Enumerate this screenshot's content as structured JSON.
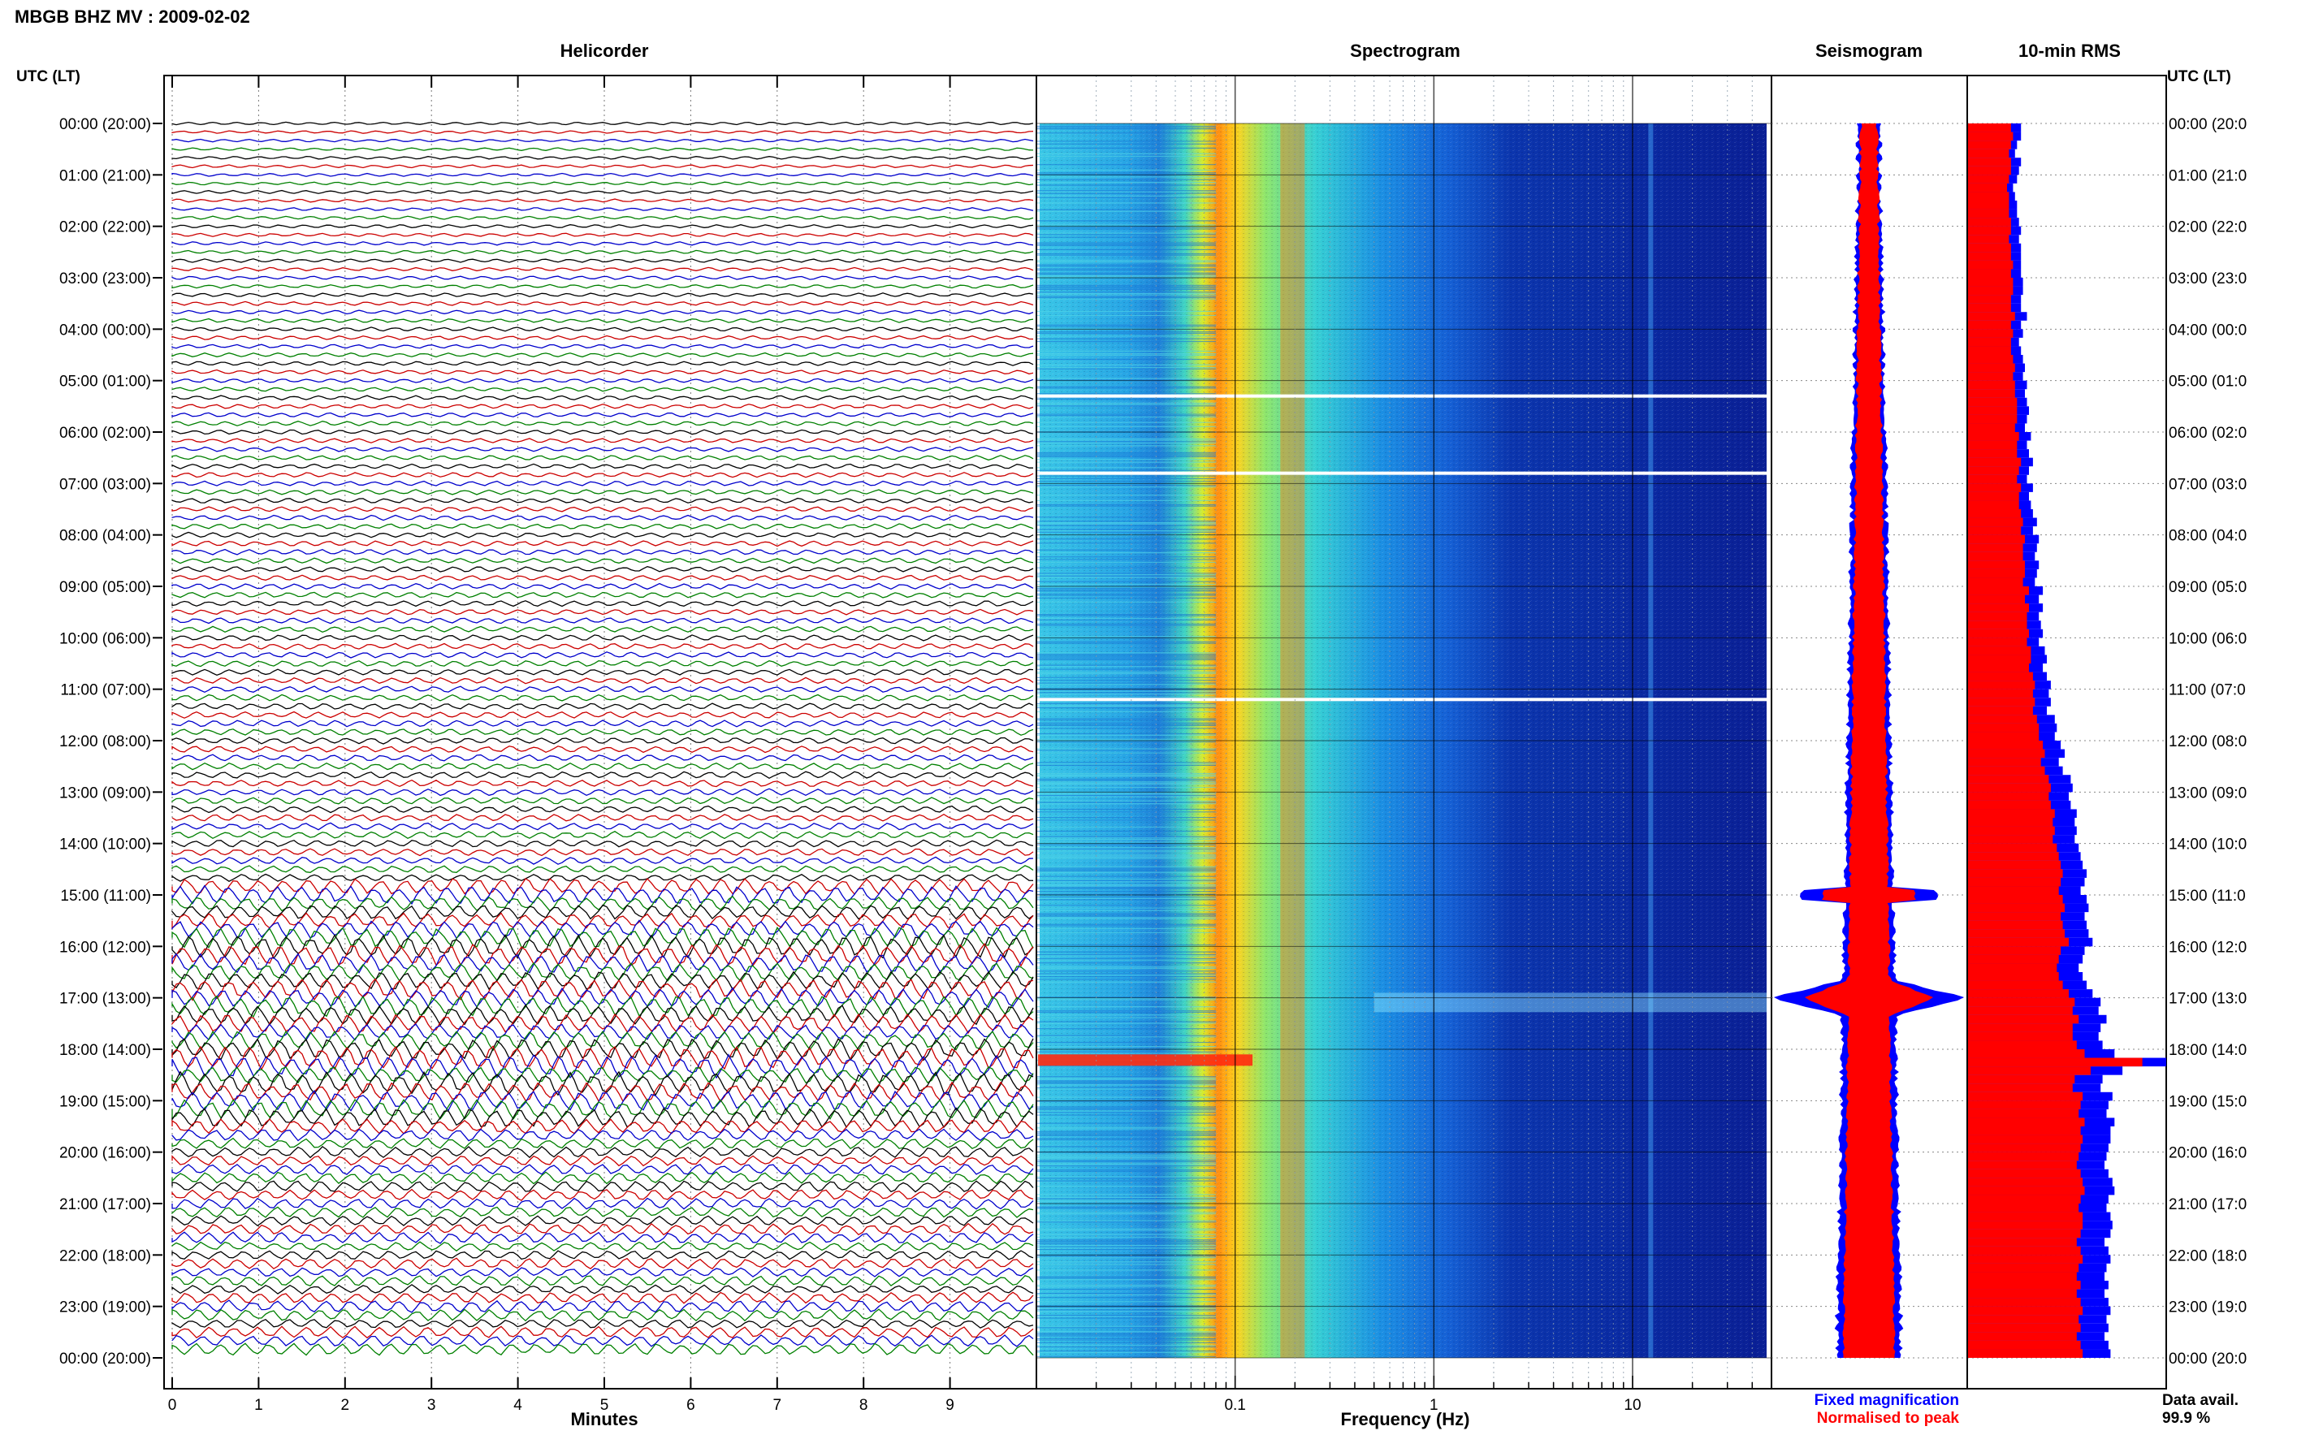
{
  "title": "MBGB BHZ MV : 2009-02-02",
  "time_axis_label": "UTC (LT)",
  "panels": {
    "helicorder": "Helicorder",
    "spectrogram": "Spectrogram",
    "seismogram": "Seismogram",
    "rms": "10-min RMS"
  },
  "time_labels": [
    "00:00 (20:00)",
    "01:00 (21:00)",
    "02:00 (22:00)",
    "03:00 (23:00)",
    "04:00 (00:00)",
    "05:00 (01:00)",
    "06:00 (02:00)",
    "07:00 (03:00)",
    "08:00 (04:00)",
    "09:00 (05:00)",
    "10:00 (06:00)",
    "11:00 (07:00)",
    "12:00 (08:00)",
    "13:00 (09:00)",
    "14:00 (10:00)",
    "15:00 (11:00)",
    "16:00 (12:00)",
    "17:00 (13:00)",
    "18:00 (14:00)",
    "19:00 (15:00)",
    "20:00 (16:00)",
    "21:00 (17:00)",
    "22:00 (18:00)",
    "23:00 (19:00)",
    "00:00 (20:00)"
  ],
  "right_time_labels": [
    "00:00 (20:0",
    "01:00 (21:0",
    "02:00 (22:0",
    "03:00 (23:0",
    "04:00 (00:0",
    "05:00 (01:0",
    "06:00 (02:0",
    "07:00 (03:0",
    "08:00 (04:0",
    "09:00 (05:0",
    "10:00 (06:0",
    "11:00 (07:0",
    "12:00 (08:0",
    "13:00 (09:0",
    "14:00 (10:0",
    "15:00 (11:0",
    "16:00 (12:0",
    "17:00 (13:0",
    "18:00 (14:0",
    "19:00 (15:0",
    "20:00 (16:0",
    "21:00 (17:0",
    "22:00 (18:0",
    "23:00 (19:0",
    "00:00 (20:0"
  ],
  "helicorder_axis": {
    "label": "Minutes",
    "ticks": [
      "0",
      "1",
      "2",
      "3",
      "4",
      "5",
      "6",
      "7",
      "8",
      "9"
    ],
    "xlim": [
      0,
      10
    ],
    "trace_colors": [
      "#000000",
      "#cc0000",
      "#0000cc",
      "#008000"
    ],
    "active_window_utc_hours": [
      14.8,
      19.5
    ]
  },
  "spectrogram_axis": {
    "label": "Frequency (Hz)",
    "ticks": [
      "0.1",
      "1",
      "10"
    ],
    "tick_values": [
      0.1,
      1,
      10
    ],
    "xlim": [
      0.01,
      50
    ],
    "scale": "log",
    "peak_frequency_hz": 0.2,
    "data_gaps_utc_hours": [
      5.3,
      6.8,
      11.2
    ]
  },
  "legend": {
    "fixed": "Fixed magnification",
    "normalised": "Normalised to peak",
    "fixed_color": "#0000ff",
    "normalised_color": "#ff0000"
  },
  "data_avail_label": "Data avail.",
  "data_avail_value": "99.9 %",
  "chart_data": {
    "type": "bar",
    "title": "10-min RMS",
    "orientation": "horizontal",
    "x": "UTC hour",
    "xlim": [
      0,
      24
    ],
    "series": [
      {
        "name": "Fixed magnification",
        "color": "#0000ff",
        "values": [
          0.27,
          0.27,
          0.25,
          0.24,
          0.27,
          0.26,
          0.25,
          0.23,
          0.24,
          0.25,
          0.25,
          0.26,
          0.27,
          0.26,
          0.27,
          0.27,
          0.27,
          0.27,
          0.28,
          0.28,
          0.27,
          0.27,
          0.3,
          0.27,
          0.28,
          0.26,
          0.27,
          0.28,
          0.29,
          0.28,
          0.3,
          0.29,
          0.3,
          0.31,
          0.3,
          0.29,
          0.32,
          0.3,
          0.31,
          0.33,
          0.31,
          0.3,
          0.33,
          0.31,
          0.32,
          0.33,
          0.35,
          0.33,
          0.36,
          0.35,
          0.34,
          0.36,
          0.35,
          0.34,
          0.38,
          0.36,
          0.38,
          0.36,
          0.37,
          0.38,
          0.36,
          0.39,
          0.4,
          0.38,
          0.4,
          0.42,
          0.41,
          0.42,
          0.4,
          0.44,
          0.45,
          0.44,
          0.47,
          0.49,
          0.46,
          0.48,
          0.52,
          0.53,
          0.51,
          0.52,
          0.55,
          0.54,
          0.55,
          0.54,
          0.56,
          0.57,
          0.58,
          0.6,
          0.59,
          0.57,
          0.6,
          0.61,
          0.59,
          0.6,
          0.61,
          0.63,
          0.59,
          0.58,
          0.56,
          0.58,
          0.6,
          0.63,
          0.67,
          0.66,
          0.7,
          0.67,
          0.66,
          0.68,
          0.74,
          1.0,
          0.78,
          0.68,
          0.67,
          0.73,
          0.71,
          0.7,
          0.74,
          0.72,
          0.72,
          0.71,
          0.7,
          0.69,
          0.71,
          0.73,
          0.74,
          0.71,
          0.7,
          0.72,
          0.73,
          0.72,
          0.69,
          0.71,
          0.72,
          0.7,
          0.69,
          0.71,
          0.69,
          0.71,
          0.72,
          0.7,
          0.71,
          0.69,
          0.71,
          0.72
        ]
      },
      {
        "name": "Normalised to peak",
        "color": "#ff0000",
        "values": [
          0.22,
          0.23,
          0.22,
          0.21,
          0.22,
          0.22,
          0.21,
          0.2,
          0.21,
          0.21,
          0.21,
          0.22,
          0.22,
          0.21,
          0.22,
          0.22,
          0.23,
          0.22,
          0.23,
          0.23,
          0.22,
          0.22,
          0.24,
          0.22,
          0.23,
          0.22,
          0.22,
          0.23,
          0.24,
          0.23,
          0.24,
          0.24,
          0.25,
          0.25,
          0.25,
          0.24,
          0.26,
          0.25,
          0.25,
          0.27,
          0.26,
          0.25,
          0.27,
          0.26,
          0.26,
          0.27,
          0.28,
          0.27,
          0.29,
          0.28,
          0.28,
          0.29,
          0.29,
          0.28,
          0.31,
          0.29,
          0.31,
          0.3,
          0.3,
          0.31,
          0.3,
          0.32,
          0.32,
          0.31,
          0.33,
          0.34,
          0.33,
          0.34,
          0.33,
          0.35,
          0.36,
          0.36,
          0.38,
          0.39,
          0.37,
          0.39,
          0.41,
          0.42,
          0.41,
          0.42,
          0.44,
          0.43,
          0.44,
          0.43,
          0.45,
          0.46,
          0.47,
          0.48,
          0.47,
          0.46,
          0.48,
          0.49,
          0.47,
          0.48,
          0.49,
          0.51,
          0.47,
          0.46,
          0.45,
          0.46,
          0.48,
          0.51,
          0.54,
          0.53,
          0.56,
          0.53,
          0.53,
          0.55,
          0.59,
          0.88,
          0.62,
          0.54,
          0.53,
          0.58,
          0.57,
          0.56,
          0.59,
          0.57,
          0.58,
          0.57,
          0.56,
          0.55,
          0.57,
          0.58,
          0.59,
          0.57,
          0.56,
          0.58,
          0.58,
          0.57,
          0.55,
          0.57,
          0.58,
          0.56,
          0.55,
          0.57,
          0.55,
          0.57,
          0.58,
          0.56,
          0.57,
          0.55,
          0.57,
          0.58
        ]
      }
    ]
  }
}
